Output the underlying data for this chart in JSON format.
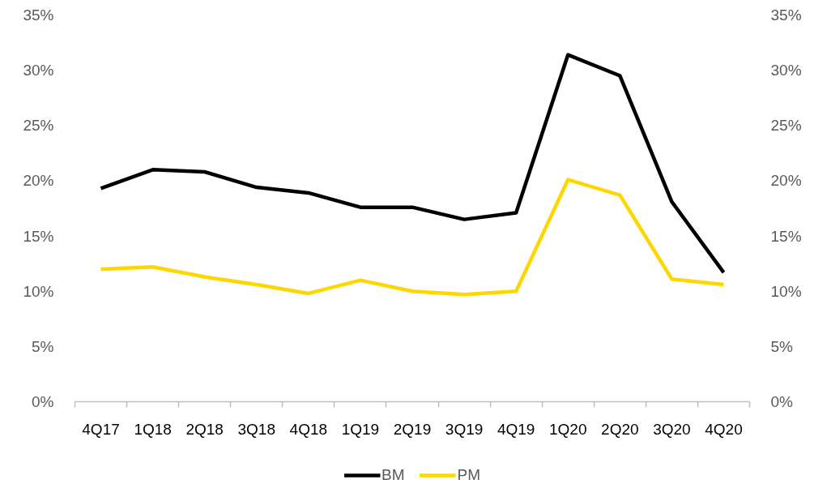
{
  "chart_data": {
    "type": "line",
    "categories": [
      "4Q17",
      "1Q18",
      "2Q18",
      "3Q18",
      "4Q18",
      "1Q19",
      "2Q19",
      "3Q19",
      "4Q19",
      "1Q20",
      "2Q20",
      "3Q20",
      "4Q20"
    ],
    "series": [
      {
        "name": "BM",
        "color": "#000000",
        "values": [
          19.3,
          21.0,
          20.8,
          19.4,
          18.9,
          17.6,
          17.6,
          16.5,
          17.1,
          31.4,
          29.5,
          18.1,
          11.7
        ]
      },
      {
        "name": "PM",
        "color": "#ffd700",
        "values": [
          12.0,
          12.2,
          11.3,
          10.6,
          9.8,
          11.0,
          10.0,
          9.7,
          10.0,
          20.1,
          18.7,
          11.1,
          10.6
        ]
      }
    ],
    "ylim": [
      0,
      35
    ],
    "yticks": [
      {
        "value": 0,
        "label": "0%"
      },
      {
        "value": 5,
        "label": "5%"
      },
      {
        "value": 10,
        "label": "10%"
      },
      {
        "value": 15,
        "label": "15%"
      },
      {
        "value": 20,
        "label": "20%"
      },
      {
        "value": 25,
        "label": "25%"
      },
      {
        "value": 30,
        "label": "30%"
      },
      {
        "value": 35,
        "label": "35%"
      }
    ],
    "y2lim": [
      0,
      35
    ],
    "y2ticks": [
      {
        "value": 0,
        "label": "0%"
      },
      {
        "value": 5,
        "label": "5%"
      },
      {
        "value": 10,
        "label": "10%"
      },
      {
        "value": 15,
        "label": "15%"
      },
      {
        "value": 20,
        "label": "20%"
      },
      {
        "value": 25,
        "label": "25%"
      },
      {
        "value": 30,
        "label": "30%"
      },
      {
        "value": 35,
        "label": "35%"
      }
    ],
    "legend": "bottom",
    "grid": false,
    "line_style": "solid"
  }
}
